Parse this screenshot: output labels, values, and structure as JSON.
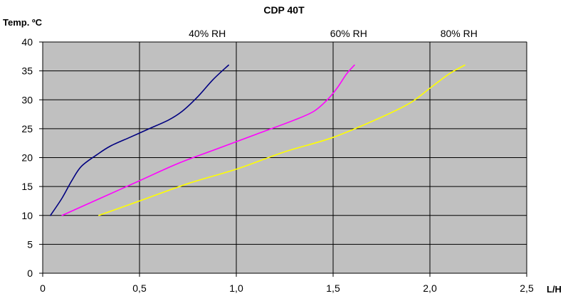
{
  "chart_data": {
    "type": "line",
    "title": "CDP 40T",
    "xlabel": "L/H",
    "ylabel": "Temp. ºC",
    "xlim": [
      0,
      2.5
    ],
    "ylim": [
      0,
      40
    ],
    "x_ticks": [
      "0",
      "0,5",
      "1,0",
      "1,5",
      "2,0",
      "2,5"
    ],
    "y_ticks": [
      "0",
      "5",
      "10",
      "15",
      "20",
      "25",
      "30",
      "35",
      "40"
    ],
    "grid": true,
    "legend": "none",
    "plot_background": "#c0c0c0",
    "series": [
      {
        "name": "40% RH",
        "color": "#000080",
        "label_at": 0.85,
        "points": [
          [
            0.04,
            10
          ],
          [
            0.1,
            13
          ],
          [
            0.15,
            16
          ],
          [
            0.2,
            18.5
          ],
          [
            0.28,
            20.5
          ],
          [
            0.35,
            22
          ],
          [
            0.45,
            23.5
          ],
          [
            0.55,
            25
          ],
          [
            0.65,
            26.5
          ],
          [
            0.72,
            28
          ],
          [
            0.8,
            30.5
          ],
          [
            0.88,
            33.5
          ],
          [
            0.96,
            36
          ]
        ]
      },
      {
        "name": "60% RH",
        "color": "#ff00ff",
        "label_at": 1.58,
        "points": [
          [
            0.1,
            10
          ],
          [
            0.3,
            13
          ],
          [
            0.5,
            16
          ],
          [
            0.7,
            19
          ],
          [
            0.9,
            21.5
          ],
          [
            1.1,
            24
          ],
          [
            1.3,
            26.5
          ],
          [
            1.4,
            28
          ],
          [
            1.47,
            30
          ],
          [
            1.52,
            32
          ],
          [
            1.57,
            34.5
          ],
          [
            1.61,
            36
          ]
        ]
      },
      {
        "name": "80% RH",
        "color": "#ffff00",
        "label_at": 2.15,
        "points": [
          [
            0.29,
            10
          ],
          [
            0.5,
            12.5
          ],
          [
            0.75,
            15.5
          ],
          [
            1.0,
            18
          ],
          [
            1.25,
            21
          ],
          [
            1.5,
            23.5
          ],
          [
            1.75,
            27
          ],
          [
            1.9,
            29.5
          ],
          [
            2.0,
            32
          ],
          [
            2.1,
            34.5
          ],
          [
            2.18,
            36
          ]
        ]
      }
    ]
  }
}
